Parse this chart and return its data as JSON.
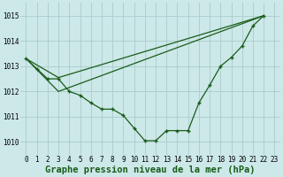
{
  "background_color": "#cce8e8",
  "grid_color": "#aacccc",
  "line_color": "#1a5c1a",
  "marker_color": "#1a5c1a",
  "xlabel": "Graphe pression niveau de la mer (hPa)",
  "xlabel_fontsize": 7.5,
  "ylim": [
    1009.5,
    1015.5
  ],
  "xlim": [
    -0.5,
    23.5
  ],
  "yticks": [
    1010,
    1011,
    1012,
    1013,
    1014,
    1015
  ],
  "xticks": [
    0,
    1,
    2,
    3,
    4,
    5,
    6,
    7,
    8,
    9,
    10,
    11,
    12,
    13,
    14,
    15,
    16,
    17,
    18,
    19,
    20,
    21,
    22,
    23
  ],
  "series1_x": [
    0,
    1,
    2,
    3,
    4,
    5,
    6,
    7,
    8,
    9,
    10,
    11,
    12,
    13,
    14,
    15,
    16,
    17,
    18,
    19,
    20,
    21,
    22
  ],
  "series1_y": [
    1013.3,
    1012.9,
    1012.5,
    1012.5,
    1012.0,
    1011.85,
    1011.55,
    1011.3,
    1011.3,
    1011.05,
    1010.55,
    1010.05,
    1010.05,
    1010.45,
    1010.45,
    1010.45,
    1011.55,
    1012.25,
    1013.0,
    1013.35,
    1013.8,
    1014.6,
    1015.0
  ],
  "series2_x": [
    0,
    3,
    22
  ],
  "series2_y": [
    1013.3,
    1012.55,
    1015.0
  ],
  "series3_x": [
    0,
    3,
    22
  ],
  "series3_y": [
    1013.3,
    1012.0,
    1015.0
  ]
}
